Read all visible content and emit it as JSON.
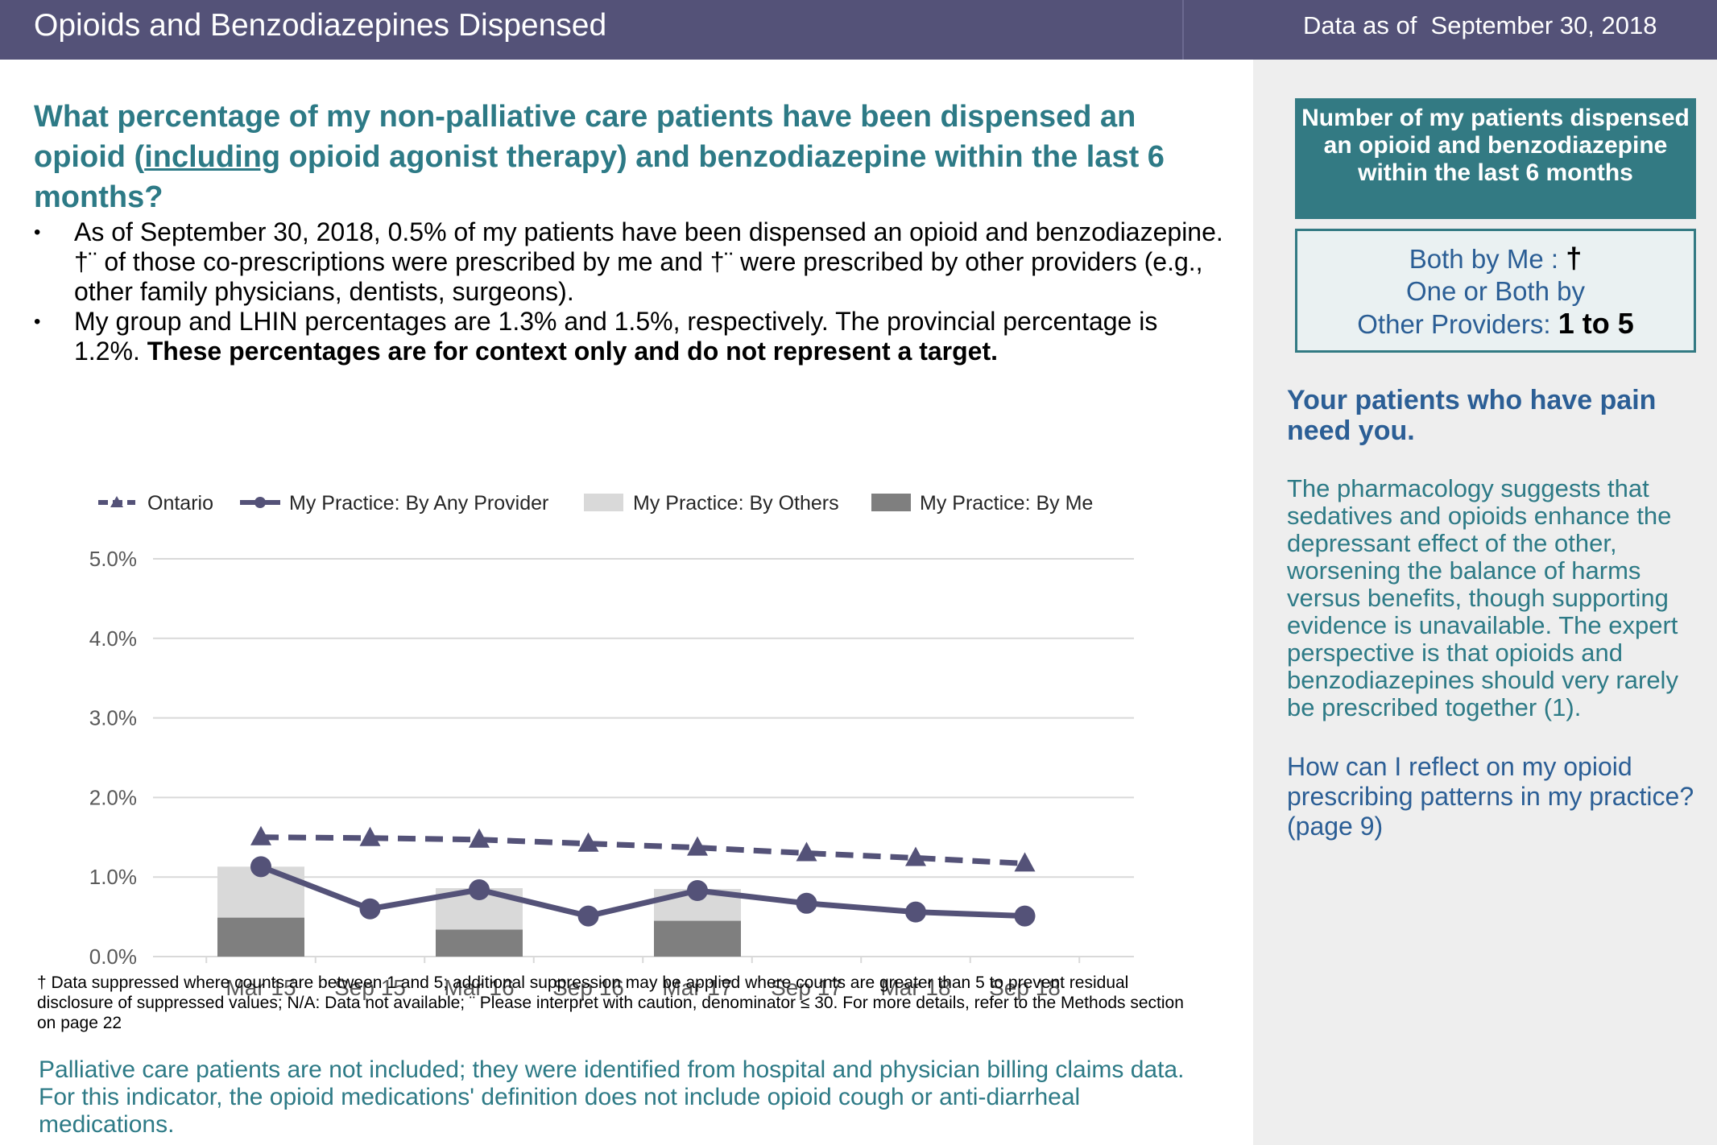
{
  "header": {
    "title": "Opioids and Benzodiazepines Dispensed",
    "asof_label": "Data as of",
    "asof_date": "September 30, 2018"
  },
  "question": {
    "pre": "What percentage of my non-palliative care patients have been dispensed an opioid (",
    "underlined": "including",
    "post": " opioid agonist therapy) and benzodiazepine within the last 6 months?"
  },
  "bullets": {
    "b1": "As of September 30, 2018, 0.5% of my patients have been dispensed an opioid and benzodiazepine. †¨ of those co-prescriptions were prescribed by me and †¨ were prescribed by other providers (e.g., other family physicians, dentists, surgeons).",
    "b2_plain": "My group and LHIN percentages are 1.3% and 1.5%, respectively. The provincial percentage is 1.2%. ",
    "b2_bold": "These percentages are for context only and do not represent a target."
  },
  "chart_data": {
    "type": "bar+line",
    "categories": [
      "Mar 15",
      "Sep 15",
      "Mar 16",
      "Sep 16",
      "Mar 17",
      "Sep 17",
      "Mar 18",
      "Sep 18"
    ],
    "y_ticks": [
      "0.0%",
      "1.0%",
      "2.0%",
      "3.0%",
      "4.0%",
      "5.0%"
    ],
    "ylim": [
      0,
      5
    ],
    "legend": [
      {
        "name": "Ontario",
        "style": "dashed-triangle",
        "color": "#545278"
      },
      {
        "name": "My Practice: By Any Provider",
        "style": "line-circle",
        "color": "#545278"
      },
      {
        "name": "My Practice: By Others",
        "style": "bar",
        "color": "#d9d9d9"
      },
      {
        "name": "My Practice: By Me",
        "style": "bar",
        "color": "#7f7f7f"
      }
    ],
    "series": [
      {
        "name": "Ontario",
        "values": [
          1.5,
          1.49,
          1.47,
          1.42,
          1.37,
          1.3,
          1.24,
          1.17
        ]
      },
      {
        "name": "My Practice: By Any Provider",
        "values": [
          1.13,
          0.6,
          0.84,
          0.51,
          0.83,
          0.67,
          0.56,
          0.51
        ]
      },
      {
        "name": "My Practice: By Others",
        "values": [
          0.64,
          null,
          0.52,
          null,
          0.4,
          null,
          null,
          null
        ]
      },
      {
        "name": "My Practice: By Me",
        "values": [
          0.49,
          null,
          0.34,
          null,
          0.45,
          null,
          null,
          null
        ]
      }
    ],
    "grid": true
  },
  "footnote": "† Data suppressed where counts are between 1 and 5; additional suppression may be applied where counts are greater than 5 to prevent residual disclosure of suppressed values; N/A: Data not available; ¨ Please interpret with caution, denominator ≤ 30. For more details, refer to the Methods section on page 22",
  "palliative": "Palliative care patients are not included; they were identified from hospital and physician billing claims data. For this indicator, the opioid medications' definition does not include opioid cough or anti-diarrheal medications.",
  "side": {
    "head": "Number of my patients dispensed an opioid and benzodiazepine within the last 6 months",
    "both_label": "Both by Me : ",
    "both_value": "†",
    "other_label_1": "One or Both by",
    "other_label_2": "Other Providers: ",
    "other_value": "1 to 5",
    "pain_title": "Your patients who have pain need you.",
    "pharm_text": "The pharmacology suggests that sedatives and opioids enhance the depressant effect of the other, worsening the balance of harms versus benefits, though supporting evidence is unavailable. The expert perspective is that opioids and benzodiazepines should very rarely be prescribed together (1).",
    "reflect_text": "How can I reflect on my opioid prescribing patterns in my practice? (page 9)"
  }
}
